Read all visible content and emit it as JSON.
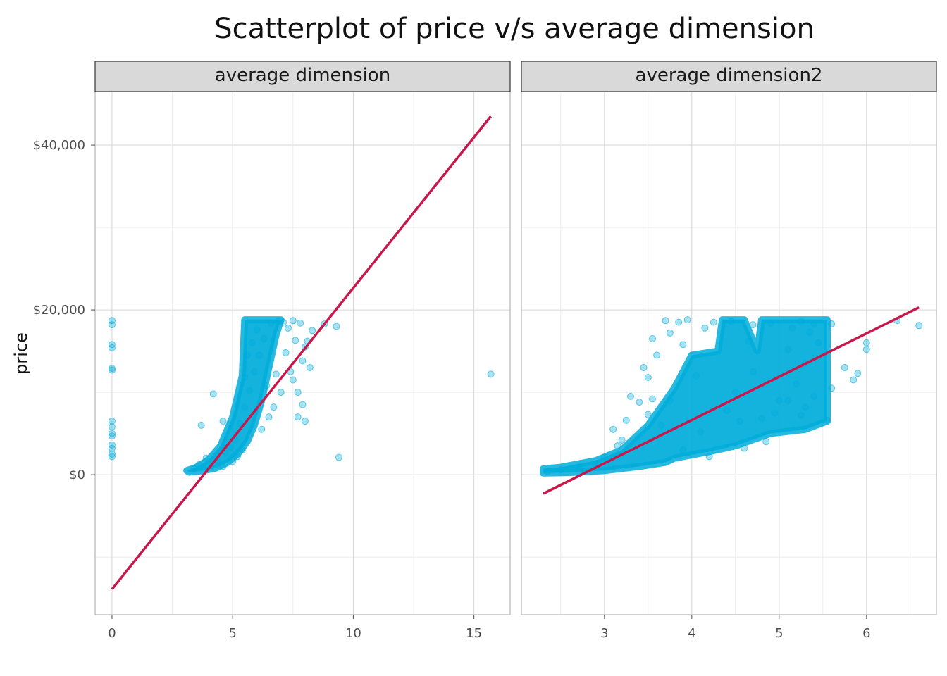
{
  "chart_data": {
    "type": "scatter",
    "title": "Scatterplot of price v/s average dimension",
    "ylabel": "price",
    "xlabel": "",
    "y_ticks": [
      {
        "value": 0,
        "label": "$0"
      },
      {
        "value": 20000,
        "label": "$20,000"
      },
      {
        "value": 40000,
        "label": "$40,000"
      }
    ],
    "ylim": [
      -17000,
      46500
    ],
    "point_color": "#00ADDB",
    "line_color": "#C8174B",
    "panels": [
      {
        "strip_label": "average dimension",
        "xlim": [
          -0.7,
          16.5
        ],
        "x_ticks": [
          {
            "value": 0,
            "label": "0"
          },
          {
            "value": 5,
            "label": "5"
          },
          {
            "value": 10,
            "label": "10"
          },
          {
            "value": 15,
            "label": "15"
          }
        ],
        "fit_line": {
          "x": [
            0,
            15.7
          ],
          "y": [
            -13900,
            43500
          ]
        },
        "cloud": [
          [
            3.2,
            300
          ],
          [
            3.8,
            500
          ],
          [
            4.3,
            800
          ],
          [
            4.8,
            1500
          ],
          [
            5.2,
            2500
          ],
          [
            5.6,
            4000
          ],
          [
            5.9,
            6000
          ],
          [
            6.2,
            9000
          ],
          [
            6.5,
            13000
          ],
          [
            6.8,
            17000
          ],
          [
            7.0,
            18800
          ],
          [
            5.5,
            18800
          ],
          [
            5.4,
            12000
          ],
          [
            5.0,
            7000
          ],
          [
            4.5,
            3500
          ],
          [
            4.0,
            1800
          ],
          [
            3.5,
            900
          ],
          [
            3.1,
            500
          ]
        ],
        "points": [
          [
            0,
            18700
          ],
          [
            0,
            18200
          ],
          [
            0,
            15800
          ],
          [
            0,
            15400
          ],
          [
            0,
            12900
          ],
          [
            0,
            12700
          ],
          [
            0,
            6500
          ],
          [
            0,
            5800
          ],
          [
            0,
            5000
          ],
          [
            0,
            4700
          ],
          [
            0,
            3600
          ],
          [
            0,
            3200
          ],
          [
            0,
            2500
          ],
          [
            0,
            2200
          ],
          [
            15.7,
            12200
          ],
          [
            9.4,
            2100
          ],
          [
            9.3,
            18000
          ],
          [
            8.8,
            18300
          ],
          [
            4.2,
            9800
          ],
          [
            3.7,
            6000
          ],
          [
            4.6,
            6500
          ],
          [
            8.0,
            15500
          ],
          [
            8.3,
            17500
          ],
          [
            7.9,
            8500
          ],
          [
            8.0,
            6500
          ],
          [
            7.5,
            11500
          ],
          [
            7.7,
            10000
          ],
          [
            8.2,
            13000
          ],
          [
            3.4,
            700
          ],
          [
            3.6,
            1200
          ],
          [
            3.9,
            2000
          ],
          [
            4.1,
            900
          ],
          [
            4.4,
            1500
          ],
          [
            4.7,
            2600
          ],
          [
            4.9,
            3300
          ],
          [
            5.1,
            4200
          ],
          [
            5.3,
            6200
          ],
          [
            5.5,
            8200
          ],
          [
            5.7,
            10200
          ],
          [
            5.9,
            12500
          ],
          [
            6.1,
            14500
          ],
          [
            6.3,
            16500
          ],
          [
            6.6,
            18400
          ],
          [
            6.9,
            18600
          ],
          [
            7.1,
            18500
          ],
          [
            7.3,
            17800
          ],
          [
            7.5,
            18700
          ],
          [
            7.8,
            18400
          ],
          [
            6.0,
            17600
          ],
          [
            5.8,
            16000
          ],
          [
            5.6,
            14500
          ],
          [
            5.5,
            11800
          ],
          [
            6.4,
            10800
          ],
          [
            6.8,
            12200
          ],
          [
            7.2,
            14800
          ],
          [
            7.6,
            16300
          ],
          [
            6.7,
            8200
          ],
          [
            7.0,
            10000
          ],
          [
            5.2,
            2200
          ],
          [
            5.0,
            1600
          ],
          [
            4.6,
            1000
          ],
          [
            5.4,
            3000
          ],
          [
            6.2,
            5500
          ],
          [
            6.5,
            7000
          ],
          [
            7.4,
            12500
          ],
          [
            7.9,
            13800
          ],
          [
            8.1,
            16200
          ],
          [
            7.7,
            7000
          ]
        ]
      },
      {
        "strip_label": "average dimension2",
        "xlim": [
          2.05,
          6.8
        ],
        "x_ticks": [
          {
            "value": 3,
            "label": "3"
          },
          {
            "value": 4,
            "label": "4"
          },
          {
            "value": 5,
            "label": "5"
          },
          {
            "value": 6,
            "label": "6"
          }
        ],
        "fit_line": {
          "x": [
            2.3,
            6.6
          ],
          "y": [
            -2300,
            20300
          ]
        },
        "cloud": [
          [
            2.3,
            200
          ],
          [
            2.6,
            250
          ],
          [
            3.0,
            500
          ],
          [
            3.4,
            1000
          ],
          [
            3.7,
            1500
          ],
          [
            3.8,
            2000
          ],
          [
            4.2,
            2800
          ],
          [
            4.5,
            3500
          ],
          [
            4.9,
            5000
          ],
          [
            5.3,
            5500
          ],
          [
            5.55,
            6500
          ],
          [
            5.55,
            18800
          ],
          [
            4.8,
            18800
          ],
          [
            4.75,
            15000
          ],
          [
            4.6,
            18800
          ],
          [
            4.35,
            18800
          ],
          [
            4.3,
            15000
          ],
          [
            4.0,
            14500
          ],
          [
            3.8,
            10500
          ],
          [
            3.5,
            6000
          ],
          [
            3.2,
            3000
          ],
          [
            2.9,
            1700
          ],
          [
            2.5,
            900
          ],
          [
            2.3,
            700
          ]
        ],
        "points": [
          [
            6.6,
            18100
          ],
          [
            6.35,
            18700
          ],
          [
            6.0,
            15200
          ],
          [
            5.9,
            12300
          ],
          [
            6.0,
            16000
          ],
          [
            5.75,
            13000
          ],
          [
            5.85,
            11500
          ],
          [
            5.6,
            10500
          ],
          [
            5.4,
            9500
          ],
          [
            5.3,
            8200
          ],
          [
            5.55,
            6600
          ],
          [
            5.25,
            7200
          ],
          [
            5.1,
            9000
          ],
          [
            5.2,
            11000
          ],
          [
            5.3,
            13500
          ],
          [
            5.45,
            16000
          ],
          [
            5.4,
            18300
          ],
          [
            5.35,
            17300
          ],
          [
            5.6,
            18300
          ],
          [
            5.25,
            18600
          ],
          [
            3.7,
            18700
          ],
          [
            3.75,
            17200
          ],
          [
            3.55,
            16500
          ],
          [
            3.6,
            14500
          ],
          [
            3.45,
            13000
          ],
          [
            3.5,
            11800
          ],
          [
            3.3,
            9500
          ],
          [
            3.4,
            8800
          ],
          [
            3.55,
            9200
          ],
          [
            3.85,
            18500
          ],
          [
            3.95,
            18800
          ],
          [
            4.15,
            17800
          ],
          [
            4.25,
            18500
          ],
          [
            3.1,
            5500
          ],
          [
            3.25,
            6600
          ],
          [
            3.2,
            4200
          ],
          [
            3.15,
            3500
          ],
          [
            3.5,
            7300
          ],
          [
            3.65,
            6000
          ],
          [
            3.75,
            9000
          ],
          [
            4.5,
            10000
          ],
          [
            4.7,
            12500
          ],
          [
            4.55,
            6500
          ],
          [
            4.8,
            6800
          ],
          [
            4.95,
            7500
          ],
          [
            5.0,
            9000
          ],
          [
            4.85,
            4000
          ],
          [
            4.6,
            3200
          ],
          [
            4.2,
            2200
          ],
          [
            3.9,
            3000
          ],
          [
            2.9,
            1200
          ],
          [
            2.7,
            900
          ],
          [
            2.5,
            600
          ],
          [
            2.35,
            400
          ],
          [
            3.0,
            2100
          ],
          [
            4.1,
            5200
          ],
          [
            4.4,
            7800
          ],
          [
            4.65,
            16200
          ],
          [
            4.05,
            12000
          ],
          [
            3.9,
            15800
          ],
          [
            5.1,
            15200
          ],
          [
            5.15,
            17800
          ],
          [
            4.9,
            18400
          ],
          [
            4.45,
            18600
          ],
          [
            4.7,
            18200
          ]
        ]
      }
    ]
  }
}
